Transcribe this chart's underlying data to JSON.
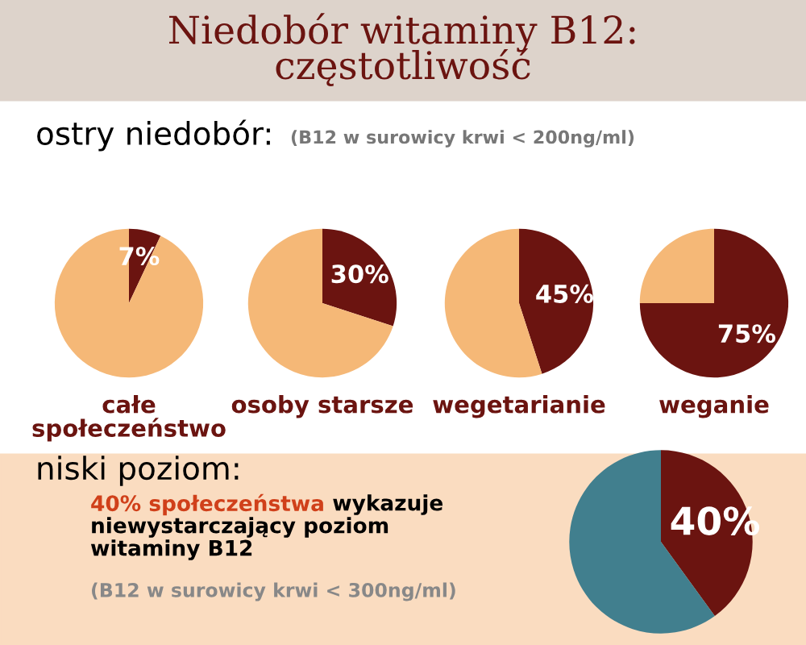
{
  "chart_data": [
    {
      "type": "other",
      "title": "Niedobór witaminy B12:\nczęstotliwość"
    },
    {
      "type": "other",
      "title": "ostry niedobór:",
      "subtitle": "(B12 w surowicy krwi < 200ng/ml)"
    },
    {
      "type": "pie",
      "xlabel": "całe\nspołeczeństwo",
      "categories": [
        null,
        null
      ],
      "values": [
        7,
        93
      ],
      "value_labels": [
        "7%",
        null
      ],
      "colors": [
        "#6b1410",
        "#f5b877"
      ]
    },
    {
      "type": "pie",
      "xlabel": "osoby starsze",
      "categories": [
        null,
        null
      ],
      "values": [
        30,
        70
      ],
      "value_labels": [
        "30%",
        null
      ],
      "colors": [
        "#6b1410",
        "#f5b877"
      ]
    },
    {
      "type": "pie",
      "xlabel": "wegetarianie",
      "categories": [
        null,
        null
      ],
      "values": [
        45,
        55
      ],
      "value_labels": [
        "45%",
        null
      ],
      "colors": [
        "#6b1410",
        "#f5b877"
      ]
    },
    {
      "type": "pie",
      "xlabel": "weganie",
      "categories": [
        null,
        null
      ],
      "values": [
        75,
        25
      ],
      "value_labels": [
        "75%",
        null
      ],
      "colors": [
        "#6b1410",
        "#f5b877"
      ]
    },
    {
      "type": "other",
      "title": "niski poziom:",
      "annotations": [
        "40% społeczeństwa",
        "wykazuje",
        "niewystarczający poziom",
        "witaminy B12",
        "(B12 w surowicy krwi < 300ng/ml)"
      ]
    },
    {
      "type": "pie",
      "categories": [
        null,
        null
      ],
      "values": [
        40,
        60
      ],
      "value_labels": [
        "40%",
        null
      ],
      "colors": [
        "#6b1410",
        "#417f8e"
      ]
    }
  ]
}
